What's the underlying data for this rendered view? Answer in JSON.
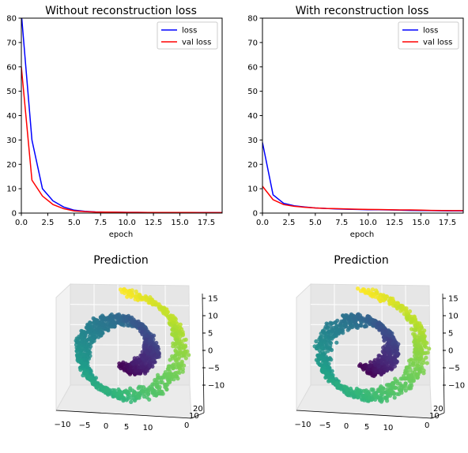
{
  "colors": {
    "loss": "#0000ff",
    "val_loss": "#ff0000",
    "axis": "#000000",
    "pane_left": "#f2f2f2",
    "pane_right": "#e6e6e6",
    "pane_floor": "#ebebeb",
    "grid3d": "#ffffff",
    "legend_border": "#cccccc"
  },
  "chart_data": [
    {
      "type": "line",
      "title": "Without reconstruction loss",
      "xlabel": "epoch",
      "ylabel": "",
      "xlim": [
        0,
        19
      ],
      "ylim": [
        0,
        80
      ],
      "xticks": [
        "0.0",
        "2.5",
        "5.0",
        "7.5",
        "10.0",
        "12.5",
        "15.0",
        "17.5"
      ],
      "yticks": [
        "0",
        "10",
        "20",
        "30",
        "40",
        "50",
        "60",
        "70",
        "80"
      ],
      "legend": "top-right",
      "grid": false,
      "x": [
        0,
        1,
        2,
        3,
        4,
        5,
        6,
        7,
        8,
        9,
        10,
        11,
        12,
        13,
        14,
        15,
        16,
        17,
        18,
        19
      ],
      "series": [
        {
          "name": "loss",
          "color": "#0000ff",
          "values": [
            82,
            30,
            10,
            5,
            2.5,
            1.2,
            0.7,
            0.5,
            0.4,
            0.35,
            0.3,
            0.28,
            0.26,
            0.25,
            0.24,
            0.23,
            0.22,
            0.21,
            0.2,
            0.2
          ]
        },
        {
          "name": "val loss",
          "color": "#ff0000",
          "values": [
            60,
            13.5,
            7,
            3.5,
            1.8,
            0.9,
            0.6,
            0.45,
            0.4,
            0.35,
            0.3,
            0.28,
            0.26,
            0.25,
            0.24,
            0.23,
            0.22,
            0.21,
            0.2,
            0.2
          ]
        }
      ]
    },
    {
      "type": "line",
      "title": "With reconstruction loss",
      "xlabel": "epoch",
      "ylabel": "",
      "xlim": [
        0,
        19
      ],
      "ylim": [
        0,
        80
      ],
      "xticks": [
        "0.0",
        "2.5",
        "5.0",
        "7.5",
        "10.0",
        "12.5",
        "15.0",
        "17.5"
      ],
      "yticks": [
        "0",
        "10",
        "20",
        "30",
        "40",
        "50",
        "60",
        "70",
        "80"
      ],
      "legend": "top-right",
      "grid": false,
      "x": [
        0,
        1,
        2,
        3,
        4,
        5,
        6,
        7,
        8,
        9,
        10,
        11,
        12,
        13,
        14,
        15,
        16,
        17,
        18,
        19
      ],
      "series": [
        {
          "name": "loss",
          "color": "#0000ff",
          "values": [
            29,
            7.5,
            4,
            3,
            2.5,
            2.1,
            1.9,
            1.7,
            1.6,
            1.5,
            1.4,
            1.35,
            1.3,
            1.2,
            1.1,
            1.05,
            1,
            0.95,
            0.9,
            0.9
          ]
        },
        {
          "name": "val loss",
          "color": "#ff0000",
          "values": [
            11,
            5.5,
            3.5,
            2.8,
            2.4,
            2.1,
            1.9,
            1.8,
            1.7,
            1.6,
            1.5,
            1.45,
            1.4,
            1.3,
            1.3,
            1.2,
            1.1,
            1.05,
            1,
            1
          ]
        }
      ]
    },
    {
      "type": "scatter",
      "title": "Prediction",
      "projection": "3d",
      "xticks": [
        "−10",
        "−5",
        "0",
        "5",
        "10"
      ],
      "yticks": [
        "0",
        "10",
        "20"
      ],
      "zticks": [
        "−10",
        "−5",
        "0",
        "5",
        "10",
        "15"
      ],
      "xlim": [
        -12,
        14
      ],
      "ylim": [
        0,
        21
      ],
      "zlim": [
        -13,
        16
      ],
      "colormap": "viridis",
      "shape": "swiss roll"
    },
    {
      "type": "scatter",
      "title": "Prediction",
      "projection": "3d",
      "xticks": [
        "−10",
        "−5",
        "0",
        "5",
        "10"
      ],
      "yticks": [
        "0",
        "10",
        "20"
      ],
      "zticks": [
        "−10",
        "−5",
        "0",
        "5",
        "10",
        "15"
      ],
      "xlim": [
        -12,
        14
      ],
      "ylim": [
        0,
        21
      ],
      "zlim": [
        -13,
        16
      ],
      "colormap": "viridis",
      "shape": "swiss roll"
    }
  ]
}
